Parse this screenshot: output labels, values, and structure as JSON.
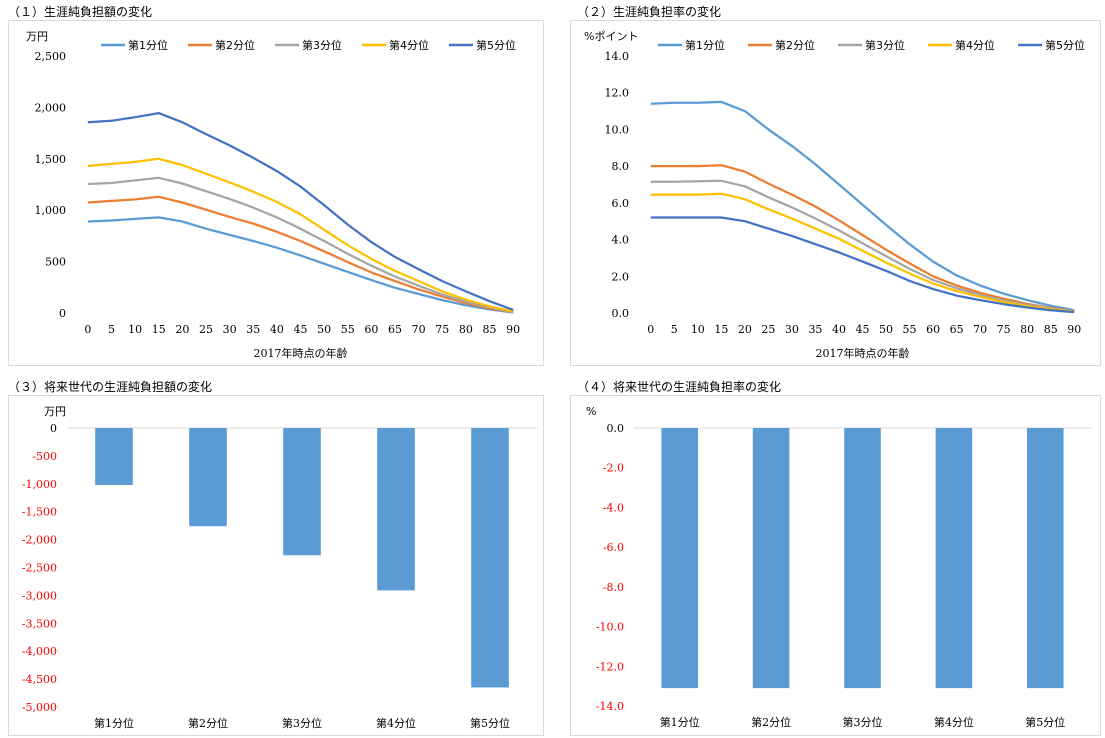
{
  "chart_data": [
    {
      "title": "（１）生涯純負担額の変化",
      "type": "line",
      "ylabel": "万円",
      "xlabel": "2017年時点の年齢",
      "ylim": [
        0,
        2500
      ],
      "yticks": [
        0,
        500,
        1000,
        1500,
        2000,
        2500
      ],
      "ytick_labels": [
        "0",
        "500",
        "1,000",
        "1,500",
        "2,000",
        "2,500"
      ],
      "x": [
        0,
        5,
        10,
        15,
        20,
        25,
        30,
        35,
        40,
        45,
        50,
        55,
        60,
        65,
        70,
        75,
        80,
        85,
        90
      ],
      "legend_position": "top",
      "grid": false,
      "series": [
        {
          "name": "第1分位",
          "color": "#5b9bd5",
          "values": [
            890,
            900,
            915,
            930,
            890,
            820,
            760,
            700,
            635,
            560,
            480,
            400,
            320,
            245,
            185,
            125,
            75,
            35,
            5
          ]
        },
        {
          "name": "第2分位",
          "color": "#ed7d31",
          "values": [
            1075,
            1090,
            1105,
            1130,
            1075,
            1005,
            935,
            870,
            790,
            700,
            600,
            495,
            395,
            310,
            230,
            160,
            95,
            45,
            8
          ]
        },
        {
          "name": "第3分位",
          "color": "#a5a5a5",
          "values": [
            1255,
            1265,
            1290,
            1315,
            1260,
            1185,
            1110,
            1025,
            930,
            820,
            700,
            575,
            460,
            355,
            265,
            180,
            110,
            55,
            10
          ]
        },
        {
          "name": "第4分位",
          "color": "#ffc000",
          "values": [
            1430,
            1450,
            1470,
            1500,
            1440,
            1355,
            1270,
            1180,
            1080,
            960,
            810,
            660,
            525,
            410,
            310,
            210,
            130,
            65,
            15
          ]
        },
        {
          "name": "第5分位",
          "color": "#4472c4",
          "values": [
            1855,
            1870,
            1905,
            1945,
            1855,
            1740,
            1630,
            1510,
            1380,
            1230,
            1050,
            860,
            690,
            545,
            425,
            310,
            210,
            115,
            30
          ]
        }
      ]
    },
    {
      "title": "（２）生涯純負担率の変化",
      "type": "line",
      "ylabel": "%ポイント",
      "xlabel": "2017年時点の年齢",
      "ylim": [
        0,
        14
      ],
      "yticks": [
        0,
        2,
        4,
        6,
        8,
        10,
        12,
        14
      ],
      "ytick_labels": [
        "0.0",
        "2.0",
        "4.0",
        "6.0",
        "8.0",
        "10.0",
        "12.0",
        "14.0"
      ],
      "x": [
        0,
        5,
        10,
        15,
        20,
        25,
        30,
        35,
        40,
        45,
        50,
        55,
        60,
        65,
        70,
        75,
        80,
        85,
        90
      ],
      "legend_position": "top",
      "grid": false,
      "series": [
        {
          "name": "第1分位",
          "color": "#5b9bd5",
          "values": [
            11.4,
            11.45,
            11.45,
            11.5,
            11.0,
            10.0,
            9.1,
            8.1,
            7.0,
            5.9,
            4.8,
            3.75,
            2.8,
            2.05,
            1.5,
            1.05,
            0.7,
            0.4,
            0.15
          ]
        },
        {
          "name": "第2分位",
          "color": "#ed7d31",
          "values": [
            8.0,
            8.0,
            8.0,
            8.05,
            7.7,
            7.05,
            6.45,
            5.8,
            5.05,
            4.25,
            3.45,
            2.7,
            2.0,
            1.5,
            1.1,
            0.78,
            0.5,
            0.28,
            0.1
          ]
        },
        {
          "name": "第3分位",
          "color": "#a5a5a5",
          "values": [
            7.15,
            7.15,
            7.18,
            7.2,
            6.9,
            6.3,
            5.75,
            5.15,
            4.5,
            3.8,
            3.1,
            2.4,
            1.8,
            1.35,
            0.98,
            0.68,
            0.45,
            0.25,
            0.08
          ]
        },
        {
          "name": "第4分位",
          "color": "#ffc000",
          "values": [
            6.45,
            6.45,
            6.45,
            6.5,
            6.2,
            5.65,
            5.15,
            4.6,
            4.05,
            3.4,
            2.75,
            2.15,
            1.6,
            1.2,
            0.88,
            0.6,
            0.38,
            0.2,
            0.06
          ]
        },
        {
          "name": "第5分位",
          "color": "#4472c4",
          "values": [
            5.2,
            5.2,
            5.2,
            5.2,
            5.0,
            4.6,
            4.2,
            3.75,
            3.3,
            2.8,
            2.3,
            1.75,
            1.3,
            0.95,
            0.7,
            0.48,
            0.3,
            0.15,
            0.05
          ]
        }
      ]
    },
    {
      "title": "（３）将来世代の生涯純負担額の変化",
      "type": "bar",
      "ylabel": "万円",
      "xlabel": "",
      "ylim": [
        -5000,
        0
      ],
      "yticks": [
        0,
        -500,
        -1000,
        -1500,
        -2000,
        -2500,
        -3000,
        -3500,
        -4000,
        -4500,
        -5000
      ],
      "ytick_labels": [
        "0",
        "-500",
        "-1,000",
        "-1,500",
        "-2,000",
        "-2,500",
        "-3,000",
        "-3,500",
        "-4,000",
        "-4,500",
        "-5,000"
      ],
      "categories": [
        "第1分位",
        "第2分位",
        "第3分位",
        "第4分位",
        "第5分位"
      ],
      "values": [
        -1020,
        -1760,
        -2280,
        -2910,
        -4650
      ],
      "bar_color": "#5b9bd5",
      "negative_tick_color": "#ff0000"
    },
    {
      "title": "（４）将来世代の生涯純負担率の変化",
      "type": "bar",
      "ylabel": "%",
      "xlabel": "",
      "ylim": [
        -14,
        0
      ],
      "yticks": [
        0,
        -2,
        -4,
        -6,
        -8,
        -10,
        -12,
        -14
      ],
      "ytick_labels": [
        "0.0",
        "-2.0",
        "-4.0",
        "-6.0",
        "-8.0",
        "-10.0",
        "-12.0",
        "-14.0"
      ],
      "categories": [
        "第1分位",
        "第2分位",
        "第3分位",
        "第4分位",
        "第5分位"
      ],
      "values": [
        -13.1,
        -13.1,
        -13.1,
        -13.1,
        -13.1
      ],
      "bar_color": "#5b9bd5",
      "negative_tick_color": "#ff0000"
    }
  ]
}
